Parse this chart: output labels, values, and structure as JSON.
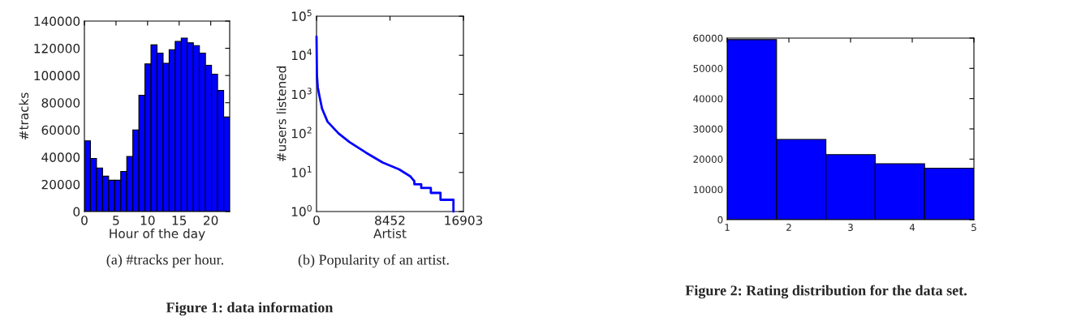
{
  "chart_data": [
    {
      "type": "histogram",
      "xlabel": "Hour of the day",
      "ylabel": "#tracks",
      "color": "#0000ff",
      "bins": [
        0,
        0.958,
        1.917,
        2.875,
        3.833,
        4.792,
        5.75,
        6.708,
        7.667,
        8.625,
        9.583,
        10.542,
        11.5,
        12.458,
        13.417,
        14.375,
        15.333,
        16.292,
        17.25,
        18.208,
        19.167,
        20.125,
        21.083,
        22.042,
        23
      ],
      "values": [
        52000,
        39000,
        32000,
        26000,
        23000,
        23000,
        29500,
        40500,
        60000,
        85500,
        108500,
        122500,
        116500,
        109000,
        119000,
        125000,
        127500,
        124000,
        122000,
        116500,
        107500,
        101000,
        89000,
        69500
      ],
      "xlim": [
        0,
        23
      ],
      "xticks": [
        0,
        5,
        10,
        15,
        20
      ],
      "ylim": [
        0,
        140000
      ],
      "yticks": [
        0,
        20000,
        40000,
        60000,
        80000,
        100000,
        120000,
        140000
      ],
      "annotations": [
        "(a) #tracks per hour.",
        "Figure 1: data information"
      ]
    },
    {
      "type": "line",
      "xlabel": "Artist",
      "ylabel": "#users listened",
      "log": "y",
      "series": [
        {
          "color": "#0000ff",
          "x": [
            0,
            50,
            150,
            317,
            634,
            1268,
            2536,
            3804,
            5706,
            7608,
            9510,
            10778,
            11254,
            11254,
            12046,
            12046,
            13156,
            13156,
            14265,
            14265,
            15755,
            15755
          ],
          "values": [
            30000,
            3000,
            1500,
            950,
            430,
            200,
            100,
            60,
            32,
            18,
            12,
            8,
            6,
            5,
            5,
            4,
            4,
            3,
            3,
            2,
            2,
            1
          ]
        }
      ],
      "xlim": [
        0,
        16903
      ],
      "xticks": [
        0,
        8452,
        16903
      ],
      "ylim": [
        1,
        100000
      ],
      "yticks": [
        {
          "value": 1,
          "label": "10$^{0}$"
        },
        {
          "value": 10,
          "label": "10$^{1}$"
        },
        {
          "value": 100,
          "label": "10$^{2}$"
        },
        {
          "value": 1000,
          "label": "10$^{3}$"
        },
        {
          "value": 10000,
          "label": "10$^{4}$"
        },
        {
          "value": 100000,
          "label": "10$^{5}$"
        }
      ],
      "annotations": [
        "(b) Popularity of an artist."
      ]
    },
    {
      "type": "histogram",
      "color": "#0000ff",
      "bins": [
        1,
        1.8,
        2.6,
        3.4,
        4.2,
        5
      ],
      "values": [
        59500,
        26500,
        21500,
        18500,
        17000
      ],
      "xlim": [
        1,
        5
      ],
      "xticks": [
        1,
        2,
        3,
        4,
        5
      ],
      "ylim": [
        0,
        60000
      ],
      "yticks": [
        0,
        10000,
        20000,
        30000,
        40000,
        50000,
        60000
      ],
      "annotations": [
        "Figure 2: Rating distribution for the data set."
      ]
    }
  ]
}
